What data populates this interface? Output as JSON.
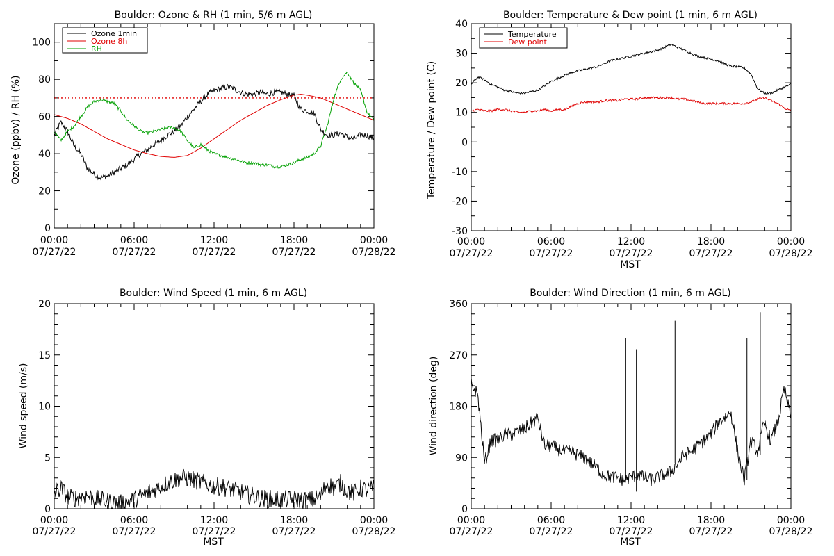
{
  "colors": {
    "black": "#000000",
    "red": "#e00000",
    "green": "#00a000",
    "background": "#ffffff"
  },
  "chart_data": [
    {
      "id": "ozone",
      "type": "line",
      "title": "Boulder: Ozone & RH (1 min, 5/6 m AGL)",
      "ylabel": "Ozone (ppbv) / RH (%)",
      "xlabel": "",
      "xlim": [
        0,
        24
      ],
      "ylim": [
        0,
        110
      ],
      "yticks": [
        0,
        20,
        40,
        60,
        80,
        100
      ],
      "y_minor_step": 10,
      "xtick_positions": [
        0,
        6,
        12,
        18,
        24
      ],
      "xtick_time_labels": [
        "00:00",
        "06:00",
        "12:00",
        "18:00",
        "00:00"
      ],
      "xtick_date_labels": [
        "07/27/22",
        "07/27/22",
        "07/27/22",
        "07/27/22",
        "07/28/22"
      ],
      "reference_line": {
        "y": 70,
        "style": "dotted",
        "color": "red"
      },
      "legend": {
        "position": "top-left",
        "entries": [
          {
            "label": "Ozone 1min",
            "color": "black"
          },
          {
            "label": "Ozone 8h",
            "color": "red"
          },
          {
            "label": "RH",
            "color": "green"
          }
        ]
      },
      "series": [
        {
          "name": "Ozone 1min",
          "color": "black",
          "noise": 1.6,
          "x": [
            0,
            0.5,
            1,
            1.5,
            2,
            2.5,
            3,
            3.5,
            4,
            4.5,
            5,
            5.5,
            6,
            6.5,
            7,
            7.5,
            8,
            8.5,
            9,
            9.5,
            10,
            10.5,
            11,
            11.5,
            12,
            12.5,
            13,
            13.5,
            14,
            14.5,
            15,
            15.5,
            16,
            16.5,
            17,
            17.5,
            18,
            18.5,
            19,
            19.5,
            20,
            20.5,
            21,
            21.5,
            22,
            22.5,
            23,
            23.5,
            24
          ],
          "y": [
            50,
            57,
            52,
            44,
            40,
            32,
            29,
            27,
            28,
            30,
            32,
            34,
            37,
            40,
            42,
            45,
            47,
            50,
            52,
            55,
            60,
            64,
            68,
            72,
            74,
            75,
            76,
            75,
            73,
            72,
            72,
            73,
            72,
            73,
            73,
            72,
            71,
            64,
            63,
            62,
            53,
            50,
            50,
            51,
            49,
            48,
            50,
            50,
            48
          ]
        },
        {
          "name": "Ozone 8h",
          "color": "red",
          "noise": 0,
          "x": [
            0,
            1,
            2,
            3,
            4,
            5,
            6,
            7,
            8,
            9,
            10,
            11,
            12,
            13,
            14,
            15,
            16,
            17,
            18,
            18.5,
            19,
            20,
            21,
            22,
            23,
            24
          ],
          "y": [
            61,
            59,
            56,
            52,
            48,
            45,
            42,
            40,
            38.5,
            38,
            39,
            43,
            48,
            53,
            58,
            62,
            66,
            69,
            71.5,
            72,
            71.5,
            70,
            67,
            64,
            61,
            58
          ]
        },
        {
          "name": "RH",
          "color": "green",
          "noise": 0.8,
          "x": [
            0,
            0.5,
            1,
            1.5,
            2,
            2.5,
            3,
            3.5,
            4,
            4.5,
            5,
            5.5,
            6,
            6.5,
            7,
            7.5,
            8,
            8.5,
            9,
            9.5,
            10,
            10.5,
            11,
            11.5,
            12,
            12.5,
            13,
            13.5,
            14,
            14.5,
            15,
            15.5,
            16,
            16.5,
            17,
            17.5,
            18,
            18.5,
            19,
            19.5,
            20,
            20.5,
            21,
            21.5,
            22,
            22.5,
            23,
            23.5,
            24
          ],
          "y": [
            52,
            47,
            52,
            55,
            60,
            65,
            68,
            69,
            68,
            67,
            63,
            58,
            55,
            52,
            51,
            52,
            53,
            54,
            54,
            52,
            47,
            43,
            45,
            42,
            40,
            39,
            38,
            37,
            36,
            35,
            35,
            34,
            34,
            33,
            33,
            34,
            35,
            37,
            38,
            40,
            44,
            55,
            70,
            80,
            84,
            78,
            74,
            62,
            58
          ]
        }
      ]
    },
    {
      "id": "temperature",
      "type": "line",
      "title": "Boulder: Temperature & Dew point (1 min, 6 m AGL)",
      "ylabel": "Temperature / Dew point (C)",
      "xlabel": "MST",
      "xlim": [
        0,
        24
      ],
      "ylim": [
        -30,
        40
      ],
      "yticks": [
        -30,
        -20,
        -10,
        0,
        10,
        20,
        30,
        40
      ],
      "y_minor_step": 5,
      "xtick_positions": [
        0,
        6,
        12,
        18,
        24
      ],
      "xtick_time_labels": [
        "00:00",
        "06:00",
        "12:00",
        "18:00",
        "00:00"
      ],
      "xtick_date_labels": [
        "07/27/22",
        "07/27/22",
        "07/27/22",
        "07/27/22",
        "07/28/22"
      ],
      "legend": {
        "position": "top-left",
        "entries": [
          {
            "label": "Temperature",
            "color": "black"
          },
          {
            "label": "Dew point",
            "color": "red"
          }
        ]
      },
      "series": [
        {
          "name": "Temperature",
          "color": "black",
          "noise": 0.35,
          "x": [
            0,
            0.5,
            1,
            1.5,
            2,
            2.5,
            3,
            3.5,
            4,
            4.5,
            5,
            5.5,
            6,
            6.5,
            7,
            7.5,
            8,
            8.5,
            9,
            9.5,
            10,
            10.5,
            11,
            11.5,
            12,
            12.5,
            13,
            13.5,
            14,
            14.5,
            15,
            15.5,
            16,
            16.5,
            17,
            17.5,
            18,
            18.5,
            19,
            19.5,
            20,
            20.5,
            21,
            21.5,
            22,
            22.5,
            23,
            23.5,
            24
          ],
          "y": [
            19.5,
            22,
            21,
            19.5,
            18.5,
            17.5,
            17,
            16.5,
            16.5,
            17,
            17.5,
            19,
            20.5,
            21.5,
            22.5,
            23.5,
            24,
            24.5,
            25,
            25.5,
            26.5,
            27.5,
            28,
            28.5,
            29,
            29.5,
            30,
            30.5,
            31,
            32,
            33,
            32,
            31,
            30,
            29,
            28.5,
            28,
            27.5,
            26.5,
            25.5,
            25.5,
            25,
            23,
            18,
            16.5,
            16.5,
            17.5,
            18.5,
            19.5
          ]
        },
        {
          "name": "Dew point",
          "color": "red",
          "noise": 0.35,
          "x": [
            0,
            0.5,
            1,
            1.5,
            2,
            2.5,
            3,
            3.5,
            4,
            4.5,
            5,
            5.5,
            6,
            6.5,
            7,
            7.5,
            8,
            8.5,
            9,
            9.5,
            10,
            10.5,
            11,
            11.5,
            12,
            12.5,
            13,
            13.5,
            14,
            14.5,
            15,
            15.5,
            16,
            16.5,
            17,
            17.5,
            18,
            18.5,
            19,
            19.5,
            20,
            20.5,
            21,
            21.5,
            22,
            22.5,
            23,
            23.5,
            24
          ],
          "y": [
            10.5,
            11,
            10.5,
            10.5,
            11,
            11,
            10.5,
            10,
            10,
            10.5,
            10.5,
            11,
            10.5,
            11,
            11,
            12,
            13,
            13.5,
            13.5,
            13.5,
            14,
            14,
            14,
            14.5,
            14.5,
            14.5,
            15,
            15,
            15,
            15,
            15,
            14.5,
            14.5,
            14,
            13.5,
            13,
            13,
            13,
            13,
            13,
            13,
            13,
            13.5,
            14.5,
            15,
            14,
            13,
            11.5,
            10.5
          ]
        }
      ]
    },
    {
      "id": "wind-speed",
      "type": "line",
      "title": "Boulder: Wind Speed (1 min, 6 m AGL)",
      "ylabel": "Wind speed (m/s)",
      "xlabel": "MST",
      "xlim": [
        0,
        24
      ],
      "ylim": [
        0,
        20
      ],
      "yticks": [
        0,
        5,
        10,
        15,
        20
      ],
      "y_minor_step": 1,
      "xtick_positions": [
        0,
        6,
        12,
        18,
        24
      ],
      "xtick_time_labels": [
        "00:00",
        "06:00",
        "12:00",
        "18:00",
        "00:00"
      ],
      "xtick_date_labels": [
        "07/27/22",
        "07/27/22",
        "07/27/22",
        "07/27/22",
        "07/28/22"
      ],
      "series": [
        {
          "color": "black",
          "noise": 0.9,
          "clip_min": 0,
          "x": [
            0,
            0.5,
            1,
            1.5,
            2,
            2.5,
            3,
            3.5,
            4,
            4.5,
            5,
            5.5,
            6,
            6.5,
            7,
            7.5,
            8,
            8.5,
            9,
            9.5,
            10,
            10.5,
            11,
            11.5,
            12,
            12.5,
            13,
            13.5,
            14,
            14.5,
            15,
            15.5,
            16,
            16.5,
            17,
            17.5,
            18,
            18.5,
            19,
            19.5,
            20,
            20.5,
            21,
            21.5,
            22,
            22.5,
            23,
            23.5,
            24
          ],
          "y": [
            1.5,
            2,
            1.2,
            1,
            1.2,
            1.3,
            1,
            0.9,
            0.7,
            0.6,
            0.5,
            0.7,
            0.9,
            1.2,
            1.5,
            1.8,
            2.2,
            2.5,
            2.8,
            3,
            3,
            2.8,
            2.6,
            2.4,
            2.2,
            2.2,
            2,
            1.8,
            1.6,
            1.4,
            1.2,
            1,
            1,
            0.9,
            0.9,
            0.9,
            0.9,
            0.9,
            0.8,
            0.9,
            1.2,
            2.5,
            2,
            2.5,
            1.8,
            1.5,
            2,
            1.8,
            2
          ]
        }
      ]
    },
    {
      "id": "wind-direction",
      "type": "line",
      "title": "Boulder: Wind Direction (1 min, 6 m AGL)",
      "ylabel": "Wind direction (deg)",
      "xlabel": "MST",
      "xlim": [
        0,
        24
      ],
      "ylim": [
        0,
        360
      ],
      "yticks": [
        0,
        90,
        180,
        270,
        360
      ],
      "y_minor_step": 18,
      "xtick_positions": [
        0,
        6,
        12,
        18,
        24
      ],
      "xtick_time_labels": [
        "00:00",
        "06:00",
        "12:00",
        "18:00",
        "00:00"
      ],
      "xtick_date_labels": [
        "07/27/22",
        "07/27/22",
        "07/27/22",
        "07/27/22",
        "07/28/22"
      ],
      "series": [
        {
          "color": "black",
          "noise": 12,
          "clip_min": 0,
          "clip_max": 360,
          "x": [
            0,
            0.5,
            1,
            1.5,
            2,
            2.5,
            3,
            3.5,
            4,
            4.5,
            5,
            5.5,
            6,
            6.5,
            7,
            7.5,
            8,
            8.5,
            9,
            9.5,
            10,
            10.5,
            11,
            11.5,
            12,
            12.5,
            13,
            13.5,
            14,
            14.5,
            15,
            15.5,
            16,
            16.5,
            17,
            17.5,
            18,
            18.5,
            19,
            19.5,
            20,
            20.5,
            21,
            21.5,
            22,
            22.5,
            23,
            23.5,
            24
          ],
          "y": [
            220,
            200,
            80,
            120,
            120,
            130,
            130,
            135,
            140,
            150,
            160,
            110,
            110,
            105,
            100,
            100,
            95,
            90,
            80,
            70,
            60,
            55,
            55,
            50,
            55,
            60,
            55,
            50,
            55,
            60,
            65,
            80,
            95,
            100,
            110,
            120,
            130,
            150,
            160,
            170,
            100,
            50,
            120,
            100,
            150,
            120,
            150,
            210,
            160
          ]
        }
      ],
      "spikes": [
        {
          "x": 11.6,
          "y": 300
        },
        {
          "x": 12.4,
          "y": 280
        },
        {
          "x": 15.3,
          "y": 330
        },
        {
          "x": 20.7,
          "y": 300
        },
        {
          "x": 21.7,
          "y": 345
        }
      ]
    }
  ]
}
